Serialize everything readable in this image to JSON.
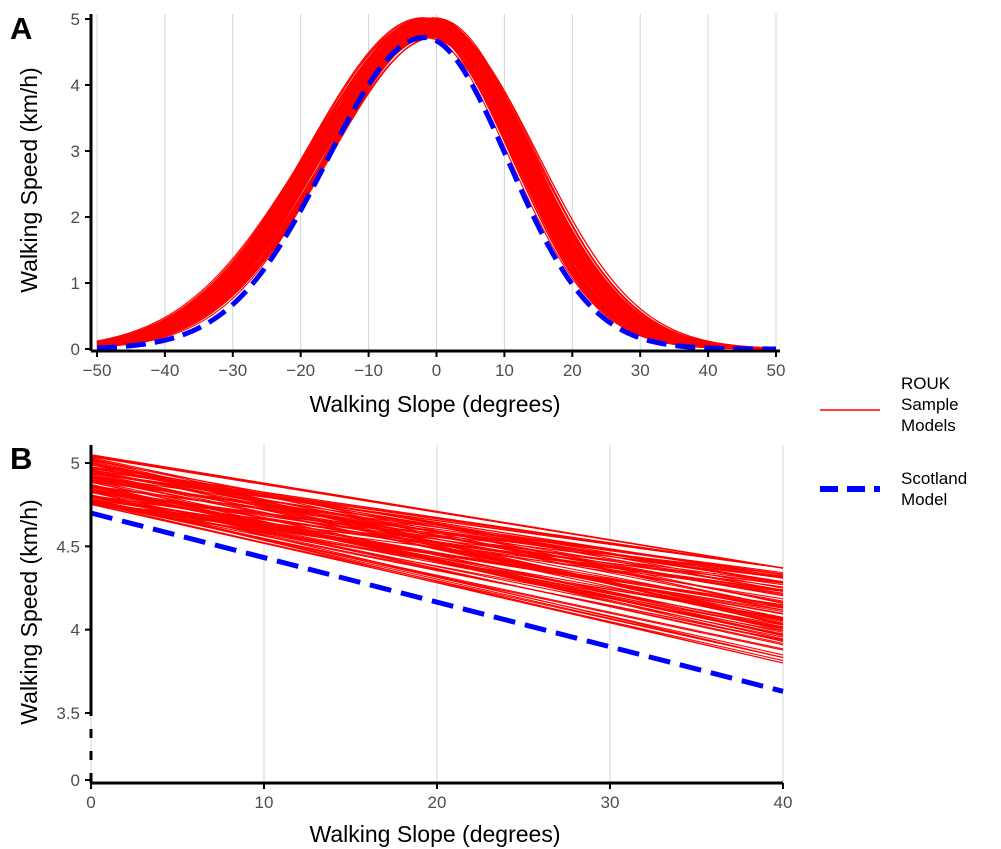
{
  "chart_data": [
    {
      "panel": "A",
      "type": "line",
      "xlabel": "Walking Slope (degrees)",
      "ylabel": "Walking Speed (km/h)",
      "xlim": [
        -50,
        50
      ],
      "ylim": [
        0,
        5
      ],
      "xticks": [
        "−50",
        "−40",
        "−30",
        "−20",
        "−10",
        "0",
        "10",
        "20",
        "30",
        "40",
        "50"
      ],
      "yticks": [
        "0",
        "1",
        "2",
        "3",
        "4",
        "5"
      ],
      "grid": "vertical",
      "series": [
        {
          "name": "ROUK Sample Models",
          "color": "#ff0000",
          "style": "solid",
          "note": "ensemble of ~100 sample curves",
          "x": [
            -50,
            -40,
            -30,
            -20,
            -10,
            -2,
            0,
            10,
            20,
            30,
            40,
            50
          ],
          "y": [
            0.05,
            0.32,
            1.0,
            2.3,
            3.8,
            4.85,
            4.85,
            3.9,
            2.0,
            0.65,
            0.15,
            0.03
          ]
        },
        {
          "name": "Scotland Model",
          "color": "#0000ff",
          "style": "dashed",
          "x": [
            -50,
            -40,
            -30,
            -20,
            -10,
            -2,
            0,
            10,
            20,
            30,
            40,
            50
          ],
          "y": [
            0.02,
            0.15,
            0.7,
            1.95,
            3.6,
            4.72,
            4.65,
            3.45,
            1.5,
            0.4,
            0.08,
            0.02
          ]
        }
      ]
    },
    {
      "panel": "B",
      "type": "line",
      "xlabel": "Walking Slope (degrees)",
      "ylabel": "Walking Speed (km/h)",
      "xlim": [
        0,
        40
      ],
      "ylim_display": [
        3.5,
        5.05
      ],
      "axis_break": true,
      "xticks": [
        "0",
        "10",
        "20",
        "30",
        "40"
      ],
      "yticks": [
        "0",
        "3.5",
        "4",
        "4.5",
        "5"
      ],
      "grid": "vertical",
      "series": [
        {
          "name": "ROUK Sample Models",
          "color": "#ff0000",
          "style": "solid",
          "note": "ensemble of ~100 linear sample models",
          "x": [
            0,
            40
          ],
          "y_range_at_0": [
            4.75,
            5.05
          ],
          "y_range_at_40": [
            3.8,
            4.37
          ]
        },
        {
          "name": "Scotland Model",
          "color": "#0000ff",
          "style": "dashed",
          "x": [
            0,
            40
          ],
          "y": [
            4.7,
            3.63
          ]
        }
      ]
    }
  ],
  "legend": {
    "placement": "right",
    "items": [
      {
        "label_lines": [
          "ROUK",
          "Sample",
          "Models"
        ],
        "color": "#ff0000",
        "style": "solid"
      },
      {
        "label_lines": [
          "Scotland",
          "Model"
        ],
        "color": "#0000ff",
        "style": "dashed"
      }
    ]
  }
}
